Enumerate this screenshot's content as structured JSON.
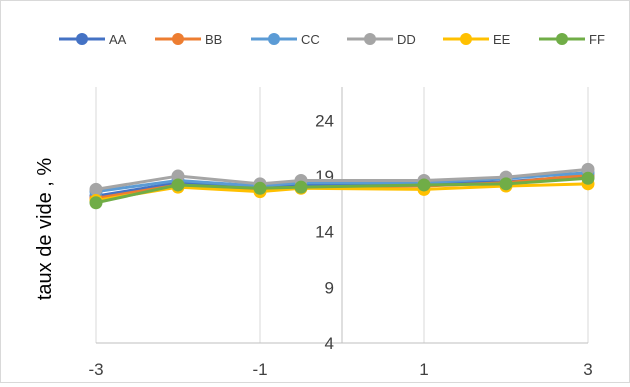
{
  "chart_data": {
    "type": "line",
    "title": "",
    "xlabel": "",
    "ylabel": "taux de vide , %",
    "x": [
      -3,
      -2,
      -1,
      -0.5,
      1,
      2,
      3
    ],
    "xticks": [
      "-3",
      "-1",
      "1",
      "3"
    ],
    "xlim": [
      -3,
      3
    ],
    "yticks": [
      "4",
      "9",
      "14",
      "19",
      "24"
    ],
    "ylim": [
      4,
      27
    ],
    "grid": "vertical",
    "legend": "top",
    "series": [
      {
        "name": "AA",
        "color": "#4472C4",
        "values": [
          17.2,
          18.4,
          18.0,
          18.2,
          18.3,
          18.5,
          19.0
        ]
      },
      {
        "name": "BB",
        "color": "#ED7D31",
        "values": [
          17.0,
          18.2,
          17.8,
          18.0,
          18.1,
          18.4,
          19.1
        ]
      },
      {
        "name": "CC",
        "color": "#5B9BD5",
        "values": [
          17.6,
          18.6,
          18.1,
          18.4,
          18.4,
          18.8,
          19.3
        ]
      },
      {
        "name": "DD",
        "color": "#A5A5A5",
        "values": [
          17.8,
          19.0,
          18.3,
          18.6,
          18.6,
          18.9,
          19.6
        ]
      },
      {
        "name": "EE",
        "color": "#FFC000",
        "values": [
          16.8,
          18.0,
          17.6,
          17.9,
          17.8,
          18.1,
          18.3
        ]
      },
      {
        "name": "FF",
        "color": "#70AD47",
        "values": [
          16.6,
          18.2,
          17.9,
          18.0,
          18.2,
          18.3,
          18.8
        ]
      }
    ]
  }
}
